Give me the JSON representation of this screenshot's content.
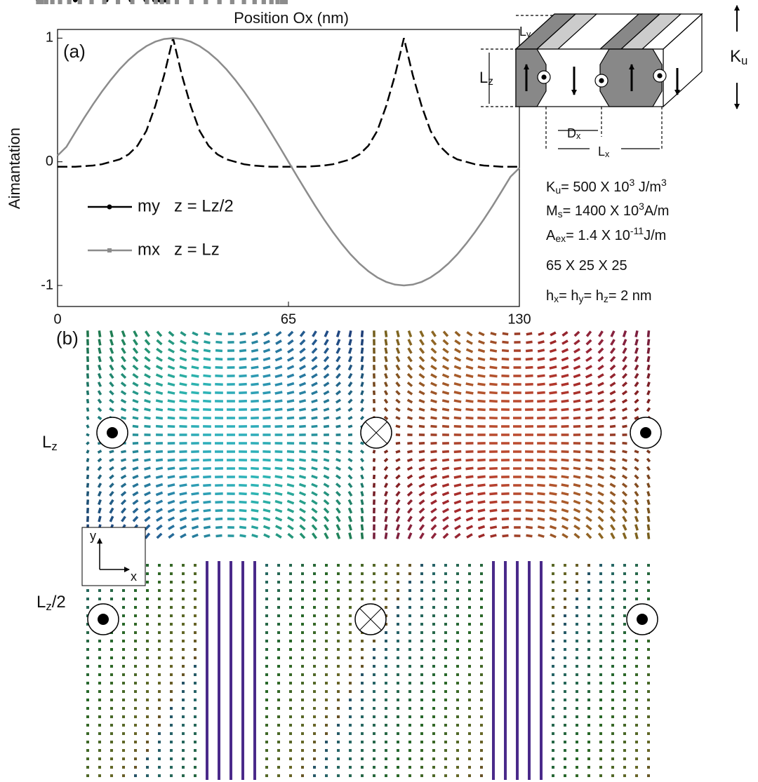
{
  "chart_data": {
    "type": "line",
    "xlabel": "Position Ox (nm)",
    "ylabel": "Aimantation",
    "x": [
      0,
      2.5,
      5,
      7.5,
      10,
      12.5,
      15,
      17.5,
      20,
      22.5,
      25,
      27.5,
      30,
      32.5,
      35,
      37.5,
      40,
      42.5,
      45,
      47.5,
      50,
      52.5,
      55,
      57.5,
      60,
      62.5,
      65,
      67.5,
      70,
      72.5,
      75,
      77.5,
      80,
      82.5,
      85,
      87.5,
      90,
      92.5,
      95,
      97.5,
      100,
      102.5,
      105,
      107.5,
      110,
      112.5,
      115,
      117.5,
      120,
      122.5,
      125,
      127.5,
      130
    ],
    "series": [
      {
        "name": "my   z = Lz/2",
        "color": "#000000",
        "marker": "circle",
        "dash": true,
        "values": [
          -0.04,
          -0.04,
          -0.04,
          -0.035,
          -0.03,
          -0.02,
          0.0,
          0.02,
          0.06,
          0.13,
          0.25,
          0.45,
          0.7,
          1,
          0.7,
          0.45,
          0.25,
          0.13,
          0.06,
          0.02,
          0.0,
          -0.02,
          -0.03,
          -0.035,
          -0.04,
          -0.04,
          -0.04,
          -0.04,
          -0.04,
          -0.035,
          -0.03,
          -0.02,
          0.0,
          0.02,
          0.06,
          0.13,
          0.25,
          0.45,
          0.7,
          1,
          0.7,
          0.45,
          0.25,
          0.13,
          0.06,
          0.02,
          0.0,
          -0.02,
          -0.03,
          -0.035,
          -0.04,
          -0.04,
          -0.04
        ]
      },
      {
        "name": "mx   z = Lz",
        "color": "#8c8c8c",
        "marker": "square",
        "dash": false,
        "values": [
          0.05,
          0.121,
          0.239,
          0.355,
          0.465,
          0.568,
          0.663,
          0.749,
          0.823,
          0.885,
          0.935,
          0.971,
          0.993,
          1,
          0.993,
          0.971,
          0.935,
          0.885,
          0.823,
          0.749,
          0.663,
          0.568,
          0.465,
          0.355,
          0.239,
          0.121,
          0,
          -0.121,
          -0.239,
          -0.355,
          -0.465,
          -0.568,
          -0.663,
          -0.749,
          -0.823,
          -0.885,
          -0.935,
          -0.971,
          -0.993,
          -1,
          -0.993,
          -0.971,
          -0.935,
          -0.885,
          -0.823,
          -0.749,
          -0.663,
          -0.568,
          -0.465,
          -0.355,
          -0.239,
          -0.121,
          -0.05
        ]
      }
    ],
    "xlim": [
      0,
      130
    ],
    "ylim": [
      -1.17,
      1.07
    ],
    "xticks": [
      0,
      65,
      130
    ],
    "yticks": [
      -1,
      0,
      1
    ]
  },
  "panel_labels": [
    "(a)",
    "(b)"
  ],
  "diagram": {
    "ku": [
      "K",
      "u"
    ],
    "ly": [
      "L",
      "y"
    ],
    "lz": [
      "L",
      "z"
    ],
    "dx": [
      "D",
      "x"
    ],
    "lx": [
      "L",
      "x"
    ]
  },
  "parameters": [
    [
      "K",
      "u",
      "= 500 X 10",
      "3",
      " J/m",
      "3"
    ],
    [
      "M",
      "s",
      "= 1400 X 10",
      "3",
      "A/m"
    ],
    [
      "A",
      "ex",
      "= 1.4 X 10",
      "-11",
      "J/m"
    ],
    [
      "65 X 25 X 25"
    ],
    [
      "h",
      "x",
      "= h",
      "y",
      "= h",
      "z",
      "= 2 nm"
    ]
  ],
  "field_maps": {
    "labels": [
      [
        "L",
        "z"
      ],
      [
        "L",
        "z",
        "/2"
      ]
    ],
    "axes": [
      "y",
      "x"
    ]
  }
}
